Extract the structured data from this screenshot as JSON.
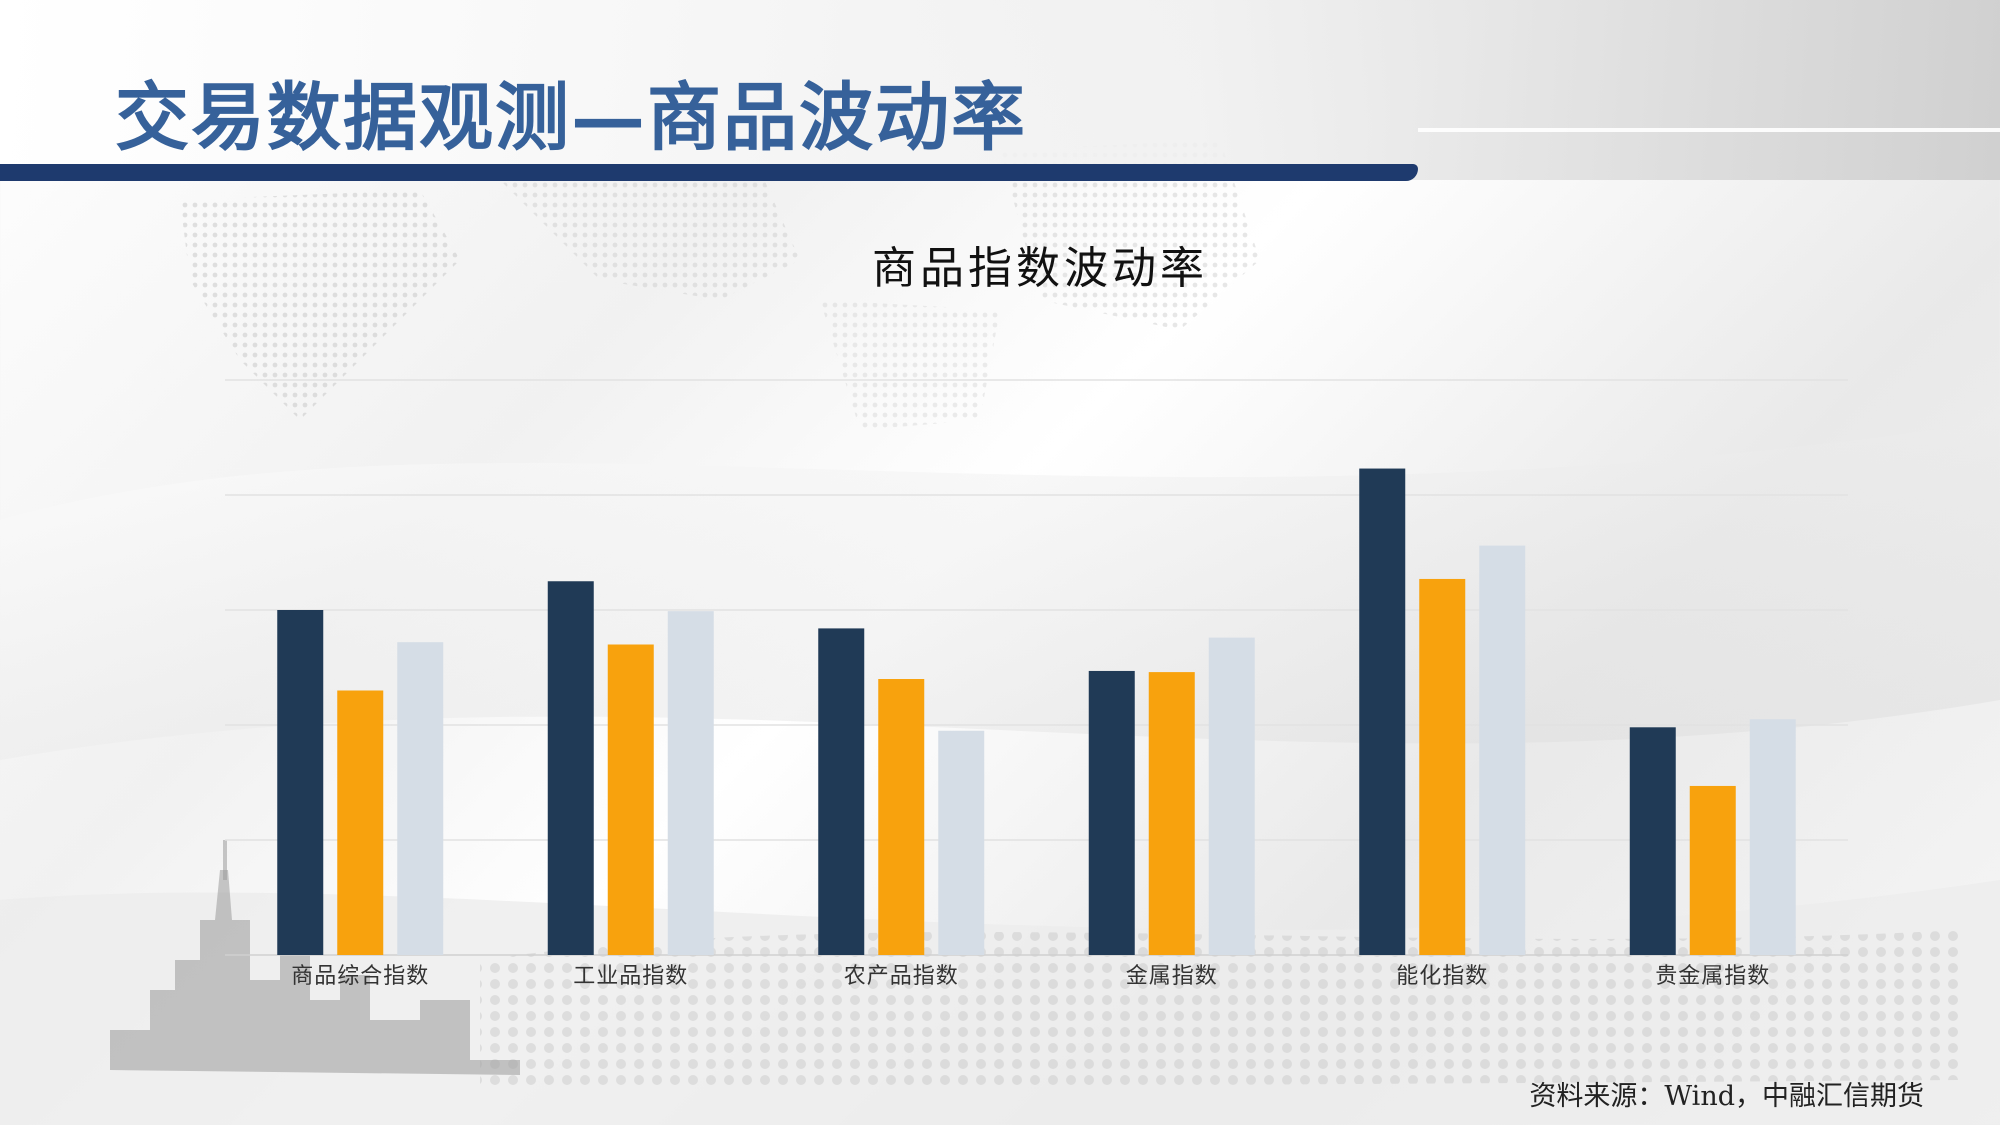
{
  "slide": {
    "title": "交易数据观测—商品波动率",
    "source": "资料来源：Wind，中融汇信期货"
  },
  "colors": {
    "header_rule": "#1e3a6e",
    "title_text": "#36619a",
    "series": [
      "#203a56",
      "#f8a20d",
      "#d5dde6"
    ]
  },
  "chart_data": {
    "type": "bar",
    "title": "商品指数波动率",
    "xlabel": "",
    "ylabel": "",
    "categories": [
      "商品综合指数",
      "工业品指数",
      "农产品指数",
      "金属指数",
      "能化指数",
      "贵金属指数"
    ],
    "series": [
      {
        "values": [
          30,
          32.5,
          28.4,
          24.7,
          42.3,
          19.8
        ]
      },
      {
        "values": [
          23,
          27,
          24,
          24.6,
          32.7,
          14.7
        ]
      },
      {
        "values": [
          27.2,
          29.9,
          19.5,
          27.6,
          35.6,
          20.5
        ]
      }
    ],
    "ylim": [
      0,
      50
    ],
    "grid": true,
    "legend": "none"
  }
}
